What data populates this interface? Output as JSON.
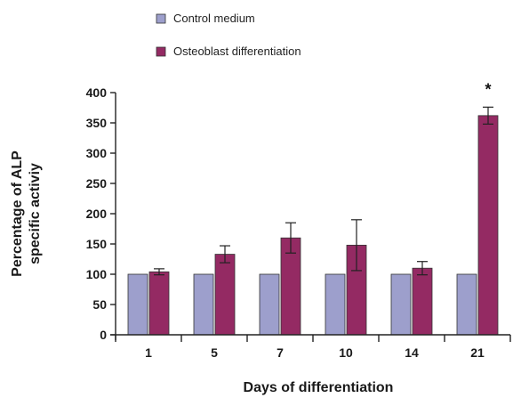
{
  "chart_data": {
    "type": "bar",
    "title": "",
    "xlabel": "Days of differentiation",
    "ylabel_lines": [
      "Percentage of ALP",
      "specific activiy"
    ],
    "categories": [
      "1",
      "5",
      "7",
      "10",
      "14",
      "21"
    ],
    "ylim": [
      0,
      400
    ],
    "yticks": [
      0,
      50,
      100,
      150,
      200,
      250,
      300,
      350,
      400
    ],
    "grid": false,
    "legend_position": "top-center",
    "series": [
      {
        "name": "Control medium",
        "color": "#9d9fcc",
        "values": [
          100,
          100,
          100,
          100,
          100,
          100
        ]
      },
      {
        "name": "Osteoblast differentiation",
        "color": "#942a63",
        "values": [
          104,
          133,
          160,
          148,
          110,
          362
        ],
        "errors": [
          5,
          14,
          25,
          42,
          11,
          14
        ]
      }
    ],
    "annotations": [
      {
        "text": "*",
        "category": "21",
        "series": "Osteoblast differentiation"
      }
    ]
  }
}
